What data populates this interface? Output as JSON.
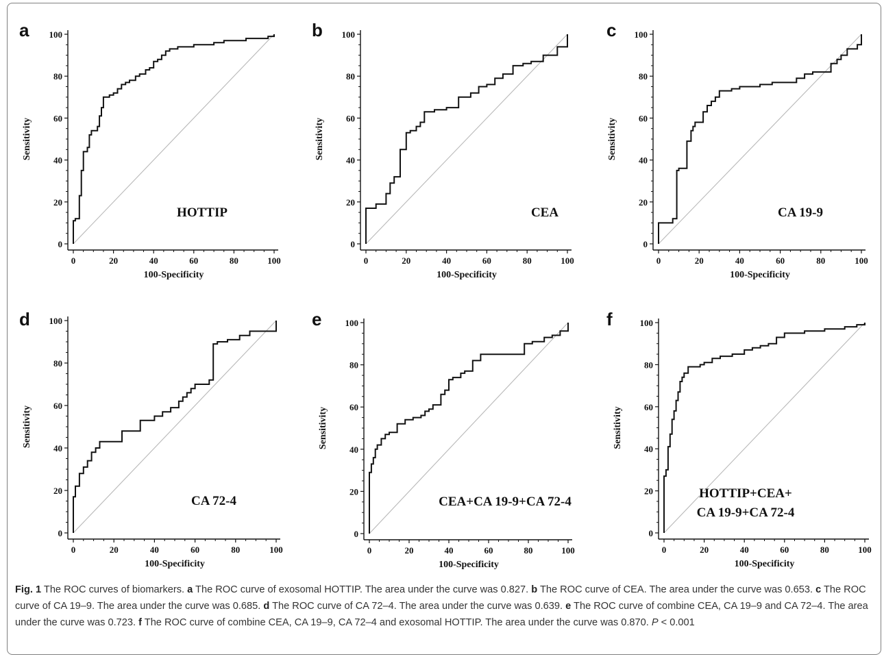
{
  "chart_data": [
    {
      "type": "line",
      "panel": "a",
      "inset_label": "HOTTIP",
      "xlabel": "100-Specificity",
      "ylabel": "Sensitivity",
      "xlim": [
        0,
        100
      ],
      "ylim": [
        0,
        100
      ],
      "x_ticks": [
        "0",
        "20",
        "40",
        "60",
        "80",
        "100"
      ],
      "y_ticks": [
        "0",
        "20",
        "40",
        "60",
        "80",
        "100"
      ],
      "reference_line": "diagonal",
      "x": [
        0,
        0,
        1,
        1,
        3,
        3,
        4,
        4,
        5,
        5,
        7,
        7,
        8,
        8,
        9,
        9,
        12,
        12,
        13,
        13,
        14,
        14,
        15,
        15,
        16,
        16,
        18,
        18,
        20,
        20,
        22,
        22,
        24,
        24,
        26,
        26,
        28,
        28,
        31,
        31,
        33,
        33,
        36,
        36,
        38,
        38,
        40,
        40,
        42,
        42,
        44,
        44,
        46,
        46,
        48,
        48,
        52,
        52,
        55,
        55,
        60,
        60,
        66,
        66,
        70,
        70,
        75,
        75,
        80,
        80,
        86,
        86,
        92,
        92,
        97,
        97,
        100,
        100
      ],
      "y": [
        0,
        11,
        11,
        12,
        12,
        23,
        23,
        35,
        35,
        44,
        44,
        46,
        46,
        52,
        52,
        54,
        54,
        56,
        56,
        61,
        61,
        65,
        65,
        70,
        70,
        70,
        70,
        71,
        71,
        72,
        72,
        74,
        74,
        76,
        76,
        77,
        77,
        78,
        78,
        80,
        80,
        81,
        81,
        83,
        83,
        84,
        84,
        87,
        87,
        88,
        88,
        90,
        90,
        92,
        92,
        93,
        93,
        94,
        94,
        94,
        94,
        95,
        95,
        95,
        95,
        96,
        96,
        97,
        97,
        97,
        97,
        98,
        98,
        98,
        98,
        99,
        99,
        100
      ]
    },
    {
      "type": "line",
      "panel": "b",
      "inset_label": "CEA",
      "xlabel": "100-Specificity",
      "ylabel": "Sensitivity",
      "xlim": [
        0,
        100
      ],
      "ylim": [
        0,
        100
      ],
      "x_ticks": [
        "0",
        "20",
        "40",
        "60",
        "80",
        "100"
      ],
      "y_ticks": [
        "0",
        "20",
        "40",
        "60",
        "80",
        "100"
      ],
      "reference_line": "diagonal",
      "x": [
        0,
        0,
        5,
        5,
        10,
        10,
        12,
        12,
        14,
        14,
        17,
        17,
        20,
        20,
        22,
        22,
        25,
        25,
        27,
        27,
        29,
        29,
        30,
        30,
        34,
        34,
        40,
        40,
        46,
        46,
        52,
        52,
        56,
        56,
        60,
        60,
        64,
        64,
        68,
        68,
        73,
        73,
        78,
        78,
        82,
        82,
        88,
        88,
        95,
        95,
        100,
        100
      ],
      "y": [
        0,
        17,
        17,
        19,
        19,
        24,
        24,
        29,
        29,
        32,
        32,
        45,
        45,
        53,
        53,
        54,
        54,
        56,
        56,
        58,
        58,
        63,
        63,
        63,
        63,
        64,
        64,
        65,
        65,
        70,
        70,
        72,
        72,
        75,
        75,
        76,
        76,
        79,
        79,
        81,
        81,
        85,
        85,
        86,
        86,
        87,
        87,
        90,
        90,
        94,
        94,
        100
      ]
    },
    {
      "type": "line",
      "panel": "c",
      "inset_label": "CA 19-9",
      "xlabel": "100-Specificity",
      "ylabel": "Sensitivity",
      "xlim": [
        0,
        100
      ],
      "ylim": [
        0,
        100
      ],
      "x_ticks": [
        "0",
        "20",
        "40",
        "60",
        "80",
        "100"
      ],
      "y_ticks": [
        "0",
        "20",
        "40",
        "60",
        "80",
        "100"
      ],
      "reference_line": "diagonal",
      "x": [
        0,
        0,
        7,
        7,
        9,
        9,
        10,
        10,
        14,
        14,
        16,
        16,
        17,
        17,
        18,
        18,
        22,
        22,
        24,
        24,
        26,
        26,
        28,
        28,
        30,
        30,
        36,
        36,
        40,
        40,
        50,
        50,
        56,
        56,
        68,
        68,
        72,
        72,
        76,
        76,
        85,
        85,
        88,
        88,
        90,
        90,
        93,
        93,
        98,
        98,
        100,
        100
      ],
      "y": [
        0,
        10,
        10,
        12,
        12,
        35,
        35,
        36,
        36,
        49,
        49,
        54,
        54,
        56,
        56,
        58,
        58,
        63,
        63,
        66,
        66,
        68,
        68,
        70,
        70,
        73,
        73,
        74,
        74,
        75,
        75,
        76,
        76,
        77,
        77,
        79,
        79,
        81,
        81,
        82,
        82,
        86,
        86,
        88,
        88,
        90,
        90,
        93,
        93,
        95,
        95,
        100
      ]
    },
    {
      "type": "line",
      "panel": "d",
      "inset_label": "CA 72-4",
      "xlabel": "100-Specificity",
      "ylabel": "Sensitivity",
      "xlim": [
        0,
        100
      ],
      "ylim": [
        0,
        100
      ],
      "x_ticks": [
        "0",
        "20",
        "40",
        "60",
        "80",
        "100"
      ],
      "y_ticks": [
        "0",
        "20",
        "40",
        "60",
        "80",
        "100"
      ],
      "reference_line": "diagonal",
      "x": [
        0,
        0,
        1,
        1,
        3,
        3,
        5,
        5,
        7,
        7,
        9,
        9,
        11,
        11,
        13,
        13,
        14,
        14,
        24,
        24,
        28,
        28,
        33,
        33,
        40,
        40,
        44,
        44,
        48,
        48,
        52,
        52,
        54,
        54,
        56,
        56,
        58,
        58,
        60,
        60,
        67,
        67,
        69,
        69,
        71,
        71,
        76,
        76,
        82,
        82,
        87,
        87,
        100,
        100
      ],
      "y": [
        0,
        17,
        17,
        22,
        22,
        28,
        28,
        31,
        31,
        34,
        34,
        38,
        38,
        40,
        40,
        43,
        43,
        43,
        43,
        48,
        48,
        48,
        48,
        53,
        53,
        55,
        55,
        57,
        57,
        59,
        59,
        62,
        62,
        64,
        64,
        66,
        66,
        68,
        68,
        70,
        70,
        72,
        72,
        89,
        89,
        90,
        90,
        91,
        91,
        93,
        93,
        95,
        95,
        100
      ]
    },
    {
      "type": "line",
      "panel": "e",
      "inset_label": "CEA+CA 19-9+CA 72-4",
      "xlabel": "100-Specificity",
      "ylabel": "Sensitivity",
      "xlim": [
        0,
        100
      ],
      "ylim": [
        0,
        100
      ],
      "x_ticks": [
        "0",
        "20",
        "40",
        "60",
        "80",
        "100"
      ],
      "y_ticks": [
        "0",
        "20",
        "40",
        "60",
        "80",
        "100"
      ],
      "reference_line": "diagonal",
      "x": [
        0,
        0,
        1,
        1,
        2,
        2,
        3,
        3,
        4,
        4,
        6,
        6,
        8,
        8,
        10,
        10,
        14,
        14,
        18,
        18,
        22,
        22,
        26,
        26,
        28,
        28,
        30,
        30,
        32,
        32,
        36,
        36,
        38,
        38,
        40,
        40,
        42,
        42,
        46,
        46,
        48,
        48,
        52,
        52,
        56,
        56,
        64,
        64,
        78,
        78,
        82,
        82,
        88,
        88,
        92,
        92,
        96,
        96,
        100,
        100
      ],
      "y": [
        0,
        29,
        29,
        33,
        33,
        36,
        36,
        40,
        40,
        42,
        42,
        45,
        45,
        47,
        47,
        48,
        48,
        52,
        52,
        54,
        54,
        55,
        55,
        56,
        56,
        58,
        58,
        59,
        59,
        61,
        61,
        66,
        66,
        68,
        68,
        73,
        73,
        74,
        74,
        76,
        76,
        77,
        77,
        82,
        82,
        85,
        85,
        85,
        85,
        90,
        90,
        91,
        91,
        93,
        93,
        94,
        94,
        96,
        96,
        100
      ]
    },
    {
      "type": "line",
      "panel": "f",
      "inset_label": "HOTTIP+CEA+\nCA 19-9+CA 72-4",
      "xlabel": "100-Specificity",
      "ylabel": "Sensitivity",
      "xlim": [
        0,
        100
      ],
      "ylim": [
        0,
        100
      ],
      "x_ticks": [
        "0",
        "20",
        "40",
        "60",
        "80",
        "100"
      ],
      "y_ticks": [
        "0",
        "20",
        "40",
        "60",
        "80",
        "100"
      ],
      "reference_line": "diagonal",
      "x": [
        0,
        0,
        1,
        1,
        2,
        2,
        3,
        3,
        4,
        4,
        5,
        5,
        6,
        6,
        7,
        7,
        8,
        8,
        9,
        9,
        10,
        10,
        12,
        12,
        15,
        15,
        18,
        18,
        20,
        20,
        24,
        24,
        28,
        28,
        34,
        34,
        40,
        40,
        44,
        44,
        48,
        48,
        52,
        52,
        56,
        56,
        60,
        60,
        70,
        70,
        80,
        80,
        90,
        90,
        96,
        96,
        100,
        100
      ],
      "y": [
        0,
        27,
        27,
        30,
        30,
        41,
        41,
        47,
        47,
        54,
        54,
        58,
        58,
        63,
        63,
        67,
        67,
        72,
        72,
        74,
        74,
        76,
        76,
        79,
        79,
        79,
        79,
        80,
        80,
        81,
        81,
        83,
        83,
        84,
        84,
        85,
        85,
        87,
        87,
        88,
        88,
        89,
        89,
        90,
        90,
        93,
        93,
        95,
        95,
        96,
        96,
        97,
        97,
        98,
        98,
        99,
        99,
        100
      ]
    }
  ],
  "caption": {
    "fig_label": "Fig. 1",
    "seg0": " The ROC curves of biomarkers. ",
    "b_a": "a",
    "seg_a": " The ROC curve of exosomal HOTTIP. The area under the curve was 0.827. ",
    "b_b": "b",
    "seg_b": " The ROC curve of CEA. The area under the curve was 0.653. ",
    "b_c": "c",
    "seg_c": " The ROC curve of CA 19–9. The area under the curve was 0.685. ",
    "b_d": "d",
    "seg_d": " The ROC curve of CA 72–4. The area under the curve was 0.639. ",
    "b_e": "e",
    "seg_e": " The ROC curve of combine CEA, CA 19–9 and CA 72–4. The area under the curve was 0.723. ",
    "b_f": "f",
    "seg_f": " The ROC curve of combine CEA, CA 19–9, CA 72–4 and exosomal HOTTIP. The area under the curve was 0.870. ",
    "p_label": "P",
    "p_value": " < 0.001"
  }
}
